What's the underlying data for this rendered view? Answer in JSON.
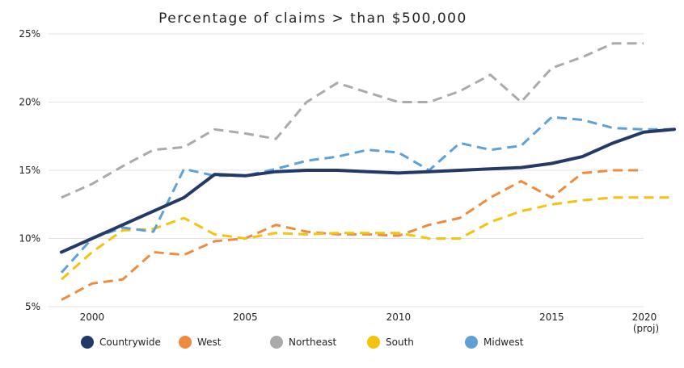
{
  "chart_data": {
    "type": "line",
    "title": "Percentage of claims > than $500,000",
    "xlabel": "",
    "ylabel": "",
    "xlim": [
      1999,
      2019.5
    ],
    "ylim": [
      5,
      25
    ],
    "x_ticks": [
      {
        "value": 2000,
        "label": "2000",
        "sublabel": ""
      },
      {
        "value": 2005,
        "label": "2005",
        "sublabel": ""
      },
      {
        "value": 2010,
        "label": "2010",
        "sublabel": ""
      },
      {
        "value": 2015,
        "label": "2015",
        "sublabel": ""
      },
      {
        "value": 2020,
        "label": "2020",
        "sublabel": "(proj)"
      }
    ],
    "y_ticks": [
      {
        "value": 5,
        "label": "5%"
      },
      {
        "value": 10,
        "label": "10%"
      },
      {
        "value": 15,
        "label": "15%"
      },
      {
        "value": 20,
        "label": "20%"
      },
      {
        "value": 25,
        "label": "25%"
      }
    ],
    "grid": "horizontal",
    "legend": "bottom",
    "x": [
      1999,
      2000,
      2001,
      2002,
      2003,
      2004,
      2005,
      2006,
      2007,
      2008,
      2009,
      2010,
      2011,
      2012,
      2013,
      2014,
      2015,
      2016,
      2017,
      2018,
      2019
    ],
    "series": [
      {
        "name": "Countrywide",
        "color": "#243a66",
        "style": "solid",
        "x": [
          1999,
          2000,
          2001,
          2002,
          2003,
          2004,
          2005,
          2006,
          2007,
          2008,
          2009,
          2010,
          2011,
          2012,
          2013,
          2014,
          2015,
          2016,
          2017,
          2018,
          2019
        ],
        "values": [
          9.0,
          10.0,
          11.0,
          12.0,
          13.0,
          14.7,
          14.6,
          14.9,
          15.0,
          15.0,
          14.9,
          14.8,
          14.9,
          15.0,
          15.1,
          15.2,
          15.5,
          16.0,
          17.0,
          17.8,
          18.0
        ]
      },
      {
        "name": "West",
        "color": "#ef8b3e",
        "style": "dashed",
        "x": [
          1999,
          2000,
          2001,
          2002,
          2003,
          2004,
          2005,
          2006,
          2007,
          2008,
          2009,
          2010,
          2011,
          2012,
          2013,
          2014,
          2015,
          2016,
          2017,
          2018
        ],
        "values": [
          5.5,
          6.7,
          7.0,
          9.0,
          8.8,
          9.8,
          10.0,
          11.0,
          10.5,
          10.3,
          10.3,
          10.2,
          11.0,
          11.5,
          13.0,
          14.2,
          13.0,
          14.8,
          15.0,
          15.0
        ]
      },
      {
        "name": "Northeast",
        "color": "#aaaaaa",
        "style": "dashed",
        "x": [
          1999,
          2000,
          2001,
          2002,
          2003,
          2004,
          2005,
          2006,
          2007,
          2008,
          2009,
          2010,
          2011,
          2012,
          2013,
          2014,
          2015,
          2016,
          2017,
          2018
        ],
        "values": [
          13.0,
          14.0,
          15.3,
          16.5,
          16.7,
          18.0,
          17.7,
          17.3,
          20.0,
          21.4,
          20.7,
          20.0,
          20.0,
          20.8,
          22.0,
          20.0,
          22.5,
          23.3,
          24.3,
          24.3
        ]
      },
      {
        "name": "South",
        "color": "#f5c20f",
        "style": "dashed",
        "x": [
          1999,
          2000,
          2001,
          2002,
          2003,
          2004,
          2005,
          2006,
          2007,
          2008,
          2009,
          2010,
          2011,
          2012,
          2013,
          2014,
          2015,
          2016,
          2017,
          2018,
          2019
        ],
        "values": [
          7.0,
          9.0,
          10.6,
          10.7,
          11.5,
          10.3,
          10.0,
          10.4,
          10.3,
          10.4,
          10.4,
          10.4,
          10.0,
          10.0,
          11.2,
          12.0,
          12.5,
          12.8,
          13.0,
          13.0,
          13.0
        ]
      },
      {
        "name": "Midwest",
        "color": "#5ea1d6",
        "style": "dashed",
        "x": [
          1999,
          2000,
          2001,
          2002,
          2003,
          2004,
          2005,
          2006,
          2007,
          2008,
          2009,
          2010,
          2011,
          2012,
          2013,
          2014,
          2015,
          2016,
          2017,
          2018,
          2019
        ],
        "values": [
          7.5,
          10.0,
          10.8,
          10.5,
          15.1,
          14.6,
          14.6,
          15.1,
          15.7,
          16.0,
          16.5,
          16.3,
          15.0,
          17.0,
          16.5,
          16.8,
          18.9,
          18.7,
          18.1,
          18.0,
          18.0
        ]
      }
    ]
  }
}
